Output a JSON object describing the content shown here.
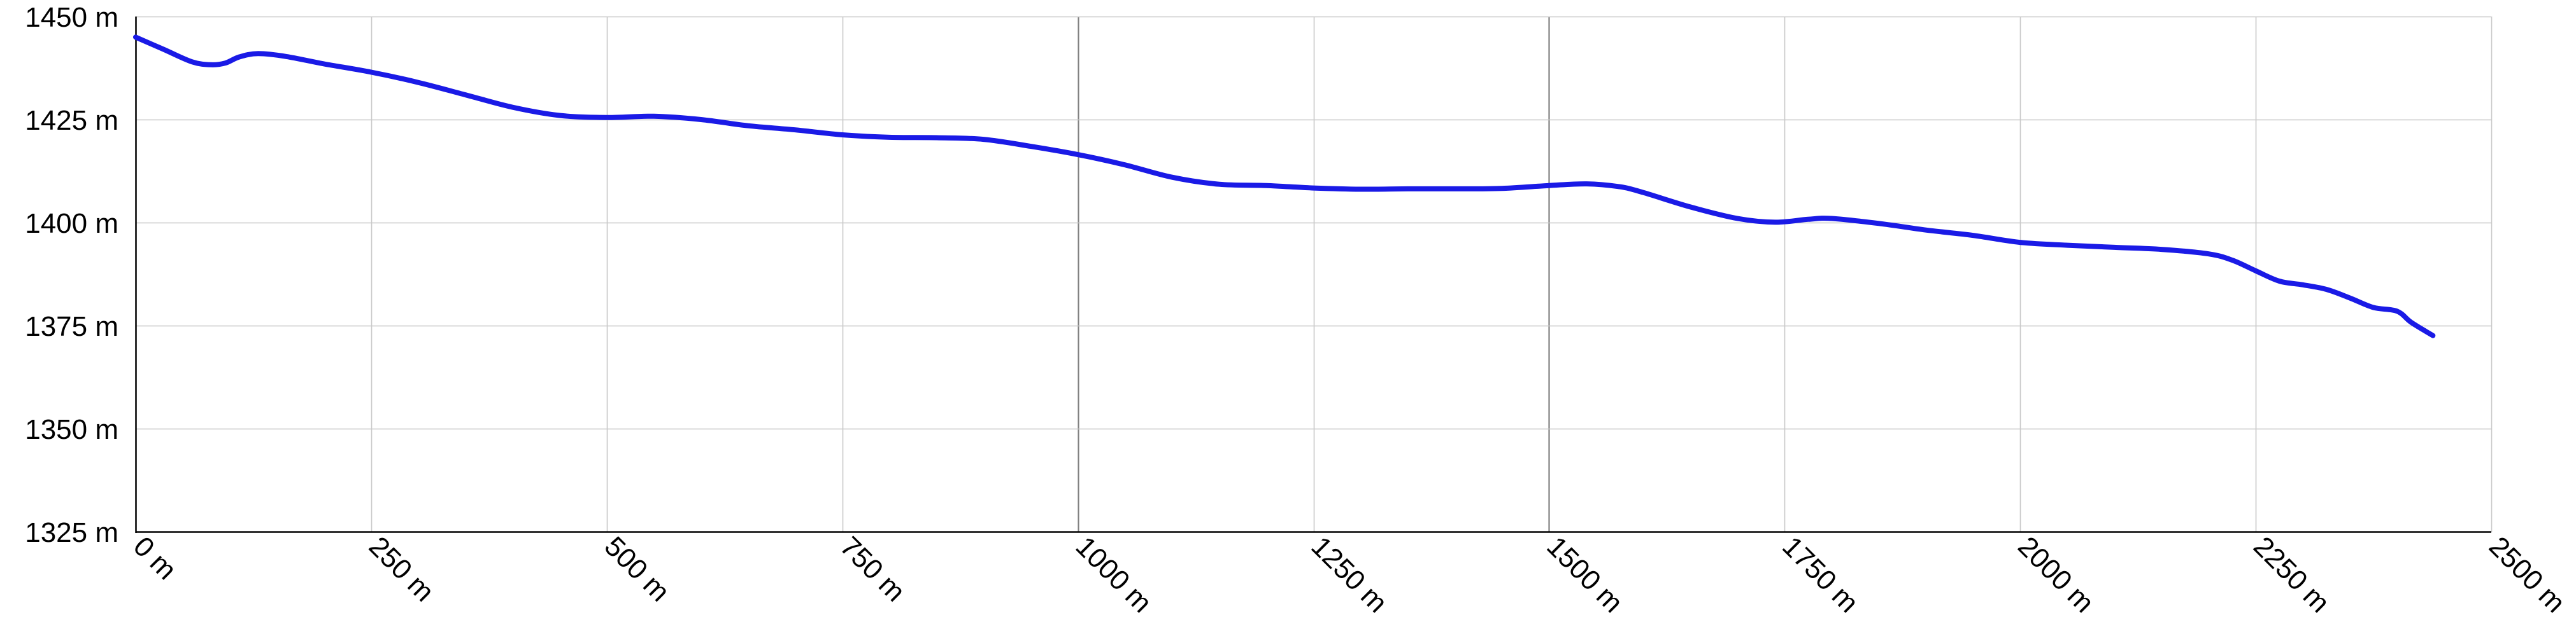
{
  "chart_data": {
    "type": "line",
    "title": "",
    "xlabel": "",
    "ylabel": "",
    "xlim": [
      0,
      2500
    ],
    "ylim": [
      1325,
      1450
    ],
    "grid": true,
    "x_ticks": [
      0,
      250,
      500,
      750,
      1000,
      1250,
      1500,
      1750,
      2000,
      2250,
      2500
    ],
    "x_tick_labels": [
      "0 m",
      "250 m",
      "500 m",
      "750 m",
      "1000 m",
      "1250 m",
      "1500 m",
      "1750 m",
      "2000 m",
      "2250 m",
      "2500 m"
    ],
    "y_ticks": [
      1325,
      1350,
      1375,
      1400,
      1425,
      1450
    ],
    "y_tick_labels": [
      "1325 m",
      "1350 m",
      "1375 m",
      "1400 m",
      "1425 m",
      "1450 m"
    ],
    "colors": {
      "line": "#1a1ae6",
      "grid": "#c8c8c8",
      "grid_major": "#808080"
    },
    "series": [
      {
        "x": [
          0,
          30,
          60,
          80,
          95,
          110,
          130,
          160,
          200,
          250,
          300,
          350,
          400,
          450,
          500,
          550,
          600,
          650,
          700,
          750,
          800,
          850,
          900,
          950,
          1000,
          1050,
          1100,
          1150,
          1200,
          1250,
          1300,
          1350,
          1400,
          1450,
          1500,
          1540,
          1575,
          1600,
          1650,
          1700,
          1740,
          1775,
          1800,
          1850,
          1900,
          1950,
          2000,
          2050,
          2100,
          2150,
          2200,
          2225,
          2250,
          2275,
          2300,
          2325,
          2350,
          2375,
          2400,
          2415,
          2438
        ],
        "y": [
          1445,
          1442,
          1439,
          1438.3,
          1438.7,
          1440.2,
          1441,
          1440.3,
          1438.5,
          1436.5,
          1434,
          1431,
          1428,
          1426,
          1425.5,
          1425.8,
          1425,
          1423.5,
          1422.5,
          1421.3,
          1420.7,
          1420.6,
          1420.2,
          1418.5,
          1416.5,
          1414,
          1411,
          1409.3,
          1409,
          1408.4,
          1408.1,
          1408.2,
          1408.2,
          1408.3,
          1409,
          1409.4,
          1408.7,
          1407.3,
          1403.8,
          1401,
          1400.1,
          1400.8,
          1401,
          1399.8,
          1398.2,
          1396.9,
          1395.2,
          1394.5,
          1394,
          1393.5,
          1392.4,
          1390.9,
          1388.3,
          1385.8,
          1384.9,
          1383.8,
          1381.7,
          1379.4,
          1378.5,
          1375.8,
          1372.6
        ]
      }
    ]
  }
}
